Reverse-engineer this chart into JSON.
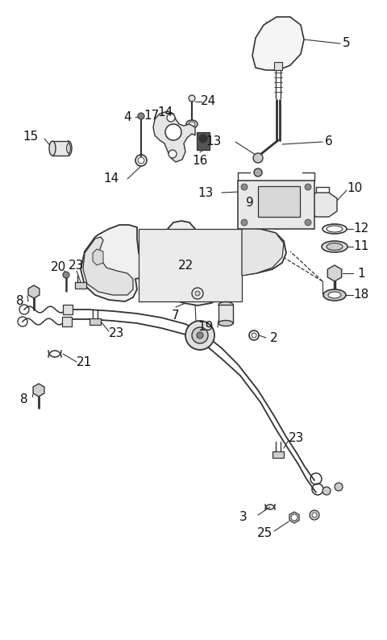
{
  "bg_color": "#ffffff",
  "lc": "#333333",
  "lc_light": "#888888",
  "figsize": [
    4.8,
    7.94
  ],
  "dpi": 100,
  "xlim": [
    0,
    480
  ],
  "ylim": [
    0,
    794
  ]
}
